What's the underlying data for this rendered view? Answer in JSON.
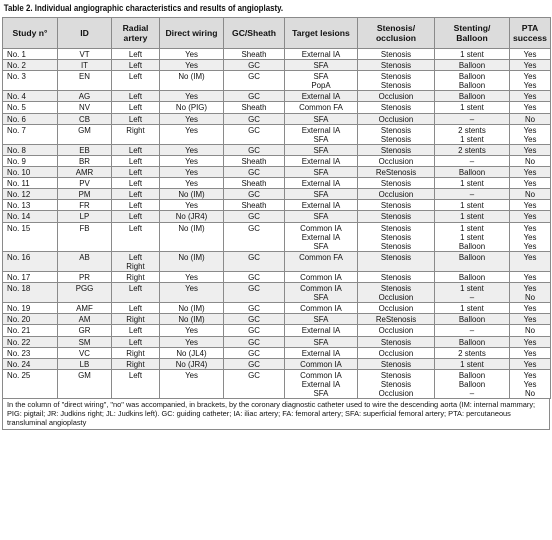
{
  "caption": "Table 2. Individual angiographic characteristics and results of angioplasty.",
  "columns": [
    "Study n°",
    "ID",
    "Radial\nartery",
    "Direct wiring",
    "GC/Sheath",
    "Target lesions",
    "Stenosis/\nocclusion",
    "Stenting/\nBalloon",
    "PTA\nsuccess"
  ],
  "rows": [
    [
      [
        "No. 1"
      ],
      [
        "VT"
      ],
      [
        "Left"
      ],
      [
        "Yes"
      ],
      [
        "Sheath"
      ],
      [
        "External IA"
      ],
      [
        "Stenosis"
      ],
      [
        "1 stent"
      ],
      [
        "Yes"
      ]
    ],
    [
      [
        "No. 2"
      ],
      [
        "IT"
      ],
      [
        "Left"
      ],
      [
        "Yes"
      ],
      [
        "GC"
      ],
      [
        "SFA"
      ],
      [
        "Stenosis"
      ],
      [
        "Balloon"
      ],
      [
        "Yes"
      ]
    ],
    [
      [
        "No. 3"
      ],
      [
        "EN"
      ],
      [
        "Left"
      ],
      [
        "No (IM)"
      ],
      [
        "GC"
      ],
      [
        "SFA",
        "PopA"
      ],
      [
        "Stenosis",
        "Stenosis"
      ],
      [
        "Balloon",
        "Balloon"
      ],
      [
        "Yes",
        "Yes"
      ]
    ],
    [
      [
        "No. 4"
      ],
      [
        "AG"
      ],
      [
        "Left"
      ],
      [
        "Yes"
      ],
      [
        "GC"
      ],
      [
        "External IA"
      ],
      [
        "Occlusion"
      ],
      [
        "Balloon"
      ],
      [
        "Yes"
      ]
    ],
    [
      [
        "No. 5"
      ],
      [
        "NV"
      ],
      [
        "Left"
      ],
      [
        "No (PIG)"
      ],
      [
        "Sheath"
      ],
      [
        "Common FA"
      ],
      [
        "Stenosis"
      ],
      [
        "1 stent"
      ],
      [
        "Yes"
      ]
    ],
    [
      [
        "No. 6"
      ],
      [
        "CB"
      ],
      [
        "Left"
      ],
      [
        "Yes"
      ],
      [
        "GC"
      ],
      [
        "SFA"
      ],
      [
        "Occlusion"
      ],
      [
        "–"
      ],
      [
        "No"
      ]
    ],
    [
      [
        "No. 7"
      ],
      [
        "GM"
      ],
      [
        "Right"
      ],
      [
        "Yes"
      ],
      [
        "GC"
      ],
      [
        "External IA",
        "SFA"
      ],
      [
        "Stenosis",
        "Stenosis"
      ],
      [
        "2 stents",
        "1 stent"
      ],
      [
        "Yes",
        "Yes"
      ]
    ],
    [
      [
        "No. 8"
      ],
      [
        "EB"
      ],
      [
        "Left"
      ],
      [
        "Yes"
      ],
      [
        "GC"
      ],
      [
        "SFA"
      ],
      [
        "Stenosis"
      ],
      [
        "2 stents"
      ],
      [
        "Yes"
      ]
    ],
    [
      [
        "No. 9"
      ],
      [
        "BR"
      ],
      [
        "Left"
      ],
      [
        "Yes"
      ],
      [
        "Sheath"
      ],
      [
        "External IA"
      ],
      [
        "Occlusion"
      ],
      [
        "–"
      ],
      [
        "No"
      ]
    ],
    [
      [
        "No. 10"
      ],
      [
        "AMR"
      ],
      [
        "Left"
      ],
      [
        "Yes"
      ],
      [
        "GC"
      ],
      [
        "SFA"
      ],
      [
        "ReStenosis"
      ],
      [
        "Balloon"
      ],
      [
        "Yes"
      ]
    ],
    [
      [
        "No. 11"
      ],
      [
        "PV"
      ],
      [
        "Left"
      ],
      [
        "Yes"
      ],
      [
        "Sheath"
      ],
      [
        "External IA"
      ],
      [
        "Stenosis"
      ],
      [
        "1 stent"
      ],
      [
        "Yes"
      ]
    ],
    [
      [
        "No. 12"
      ],
      [
        "PM"
      ],
      [
        "Left"
      ],
      [
        "No (IM)"
      ],
      [
        "GC"
      ],
      [
        "SFA"
      ],
      [
        "Occlusion"
      ],
      [
        "–"
      ],
      [
        "No"
      ]
    ],
    [
      [
        "No. 13"
      ],
      [
        "FR"
      ],
      [
        "Left"
      ],
      [
        "Yes"
      ],
      [
        "Sheath"
      ],
      [
        "External IA"
      ],
      [
        "Stenosis"
      ],
      [
        "1 stent"
      ],
      [
        "Yes"
      ]
    ],
    [
      [
        "No. 14"
      ],
      [
        "LP"
      ],
      [
        "Left"
      ],
      [
        "No (JR4)"
      ],
      [
        "GC"
      ],
      [
        "SFA"
      ],
      [
        "Stenosis"
      ],
      [
        "1 stent"
      ],
      [
        "Yes"
      ]
    ],
    [
      [
        "No. 15"
      ],
      [
        "FB"
      ],
      [
        "Left"
      ],
      [
        "No (IM)"
      ],
      [
        "GC"
      ],
      [
        "Common IA",
        "External IA",
        "SFA"
      ],
      [
        "Stenosis",
        "Stenosis",
        "Stenosis"
      ],
      [
        "1 stent",
        "1 stent",
        "Balloon"
      ],
      [
        "Yes",
        "Yes",
        "Yes"
      ]
    ],
    [
      [
        "No. 16"
      ],
      [
        "AB"
      ],
      [
        "Left",
        "Right"
      ],
      [
        "No (IM)"
      ],
      [
        "GC"
      ],
      [
        "Common FA"
      ],
      [
        "Stenosis"
      ],
      [
        "Balloon"
      ],
      [
        "Yes"
      ]
    ],
    [
      [
        "No. 17"
      ],
      [
        "PR"
      ],
      [
        "Right"
      ],
      [
        "Yes"
      ],
      [
        "GC"
      ],
      [
        "Common IA"
      ],
      [
        "Stenosis"
      ],
      [
        "Balloon"
      ],
      [
        "Yes"
      ]
    ],
    [
      [
        "No. 18"
      ],
      [
        "PGG"
      ],
      [
        "Left"
      ],
      [
        "Yes"
      ],
      [
        "GC"
      ],
      [
        "Common IA",
        "SFA"
      ],
      [
        "Stenosis",
        "Occlusion"
      ],
      [
        "1 stent",
        "–"
      ],
      [
        "Yes",
        "No"
      ]
    ],
    [
      [
        "No. 19"
      ],
      [
        "AMF"
      ],
      [
        "Left"
      ],
      [
        "No (IM)"
      ],
      [
        "GC"
      ],
      [
        "Common IA"
      ],
      [
        "Occlusion"
      ],
      [
        "1 stent"
      ],
      [
        "Yes"
      ]
    ],
    [
      [
        "No. 20"
      ],
      [
        "AM"
      ],
      [
        "Right"
      ],
      [
        "No (IM)"
      ],
      [
        "GC"
      ],
      [
        "SFA"
      ],
      [
        "ReStenosis"
      ],
      [
        "Balloon"
      ],
      [
        "Yes"
      ]
    ],
    [
      [
        "No. 21"
      ],
      [
        "GR"
      ],
      [
        "Left"
      ],
      [
        "Yes"
      ],
      [
        "GC"
      ],
      [
        "External IA"
      ],
      [
        "Occlusion"
      ],
      [
        "–"
      ],
      [
        "No"
      ]
    ],
    [
      [
        "No. 22"
      ],
      [
        "SM"
      ],
      [
        "Left"
      ],
      [
        "Yes"
      ],
      [
        "GC"
      ],
      [
        "SFA"
      ],
      [
        "Stenosis"
      ],
      [
        "Balloon"
      ],
      [
        "Yes"
      ]
    ],
    [
      [
        "No. 23"
      ],
      [
        "VC"
      ],
      [
        "Right"
      ],
      [
        "No (JL4)"
      ],
      [
        "GC"
      ],
      [
        "External IA"
      ],
      [
        "Occlusion"
      ],
      [
        "2 stents"
      ],
      [
        "Yes"
      ]
    ],
    [
      [
        "No. 24"
      ],
      [
        "LB"
      ],
      [
        "Right"
      ],
      [
        "No (JR4)"
      ],
      [
        "GC"
      ],
      [
        "Common IA"
      ],
      [
        "Stenosis"
      ],
      [
        "1 stent"
      ],
      [
        "Yes"
      ]
    ],
    [
      [
        "No. 25"
      ],
      [
        "GM"
      ],
      [
        "Left"
      ],
      [
        "Yes"
      ],
      [
        "GC"
      ],
      [
        "Common IA",
        "External IA",
        "SFA"
      ],
      [
        "Stenosis",
        "Stenosis",
        "Occlusion"
      ],
      [
        "Balloon",
        "Balloon",
        "–"
      ],
      [
        "Yes",
        "Yes",
        "No"
      ]
    ]
  ],
  "footnote": "In the column of \"direct wiring\", \"no\" was accompanied, in brackets, by the coronary diagnostic catheter used to wire the descending aorta (IM: internal mammary; PIG: pigtail; JR: Judkins right; JL: Judkins left). GC: guiding catheter; IA: iliac artery; FA: femoral artery; SFA: superficial femoral artery; PTA: percutaneous transluminal angioplasty"
}
